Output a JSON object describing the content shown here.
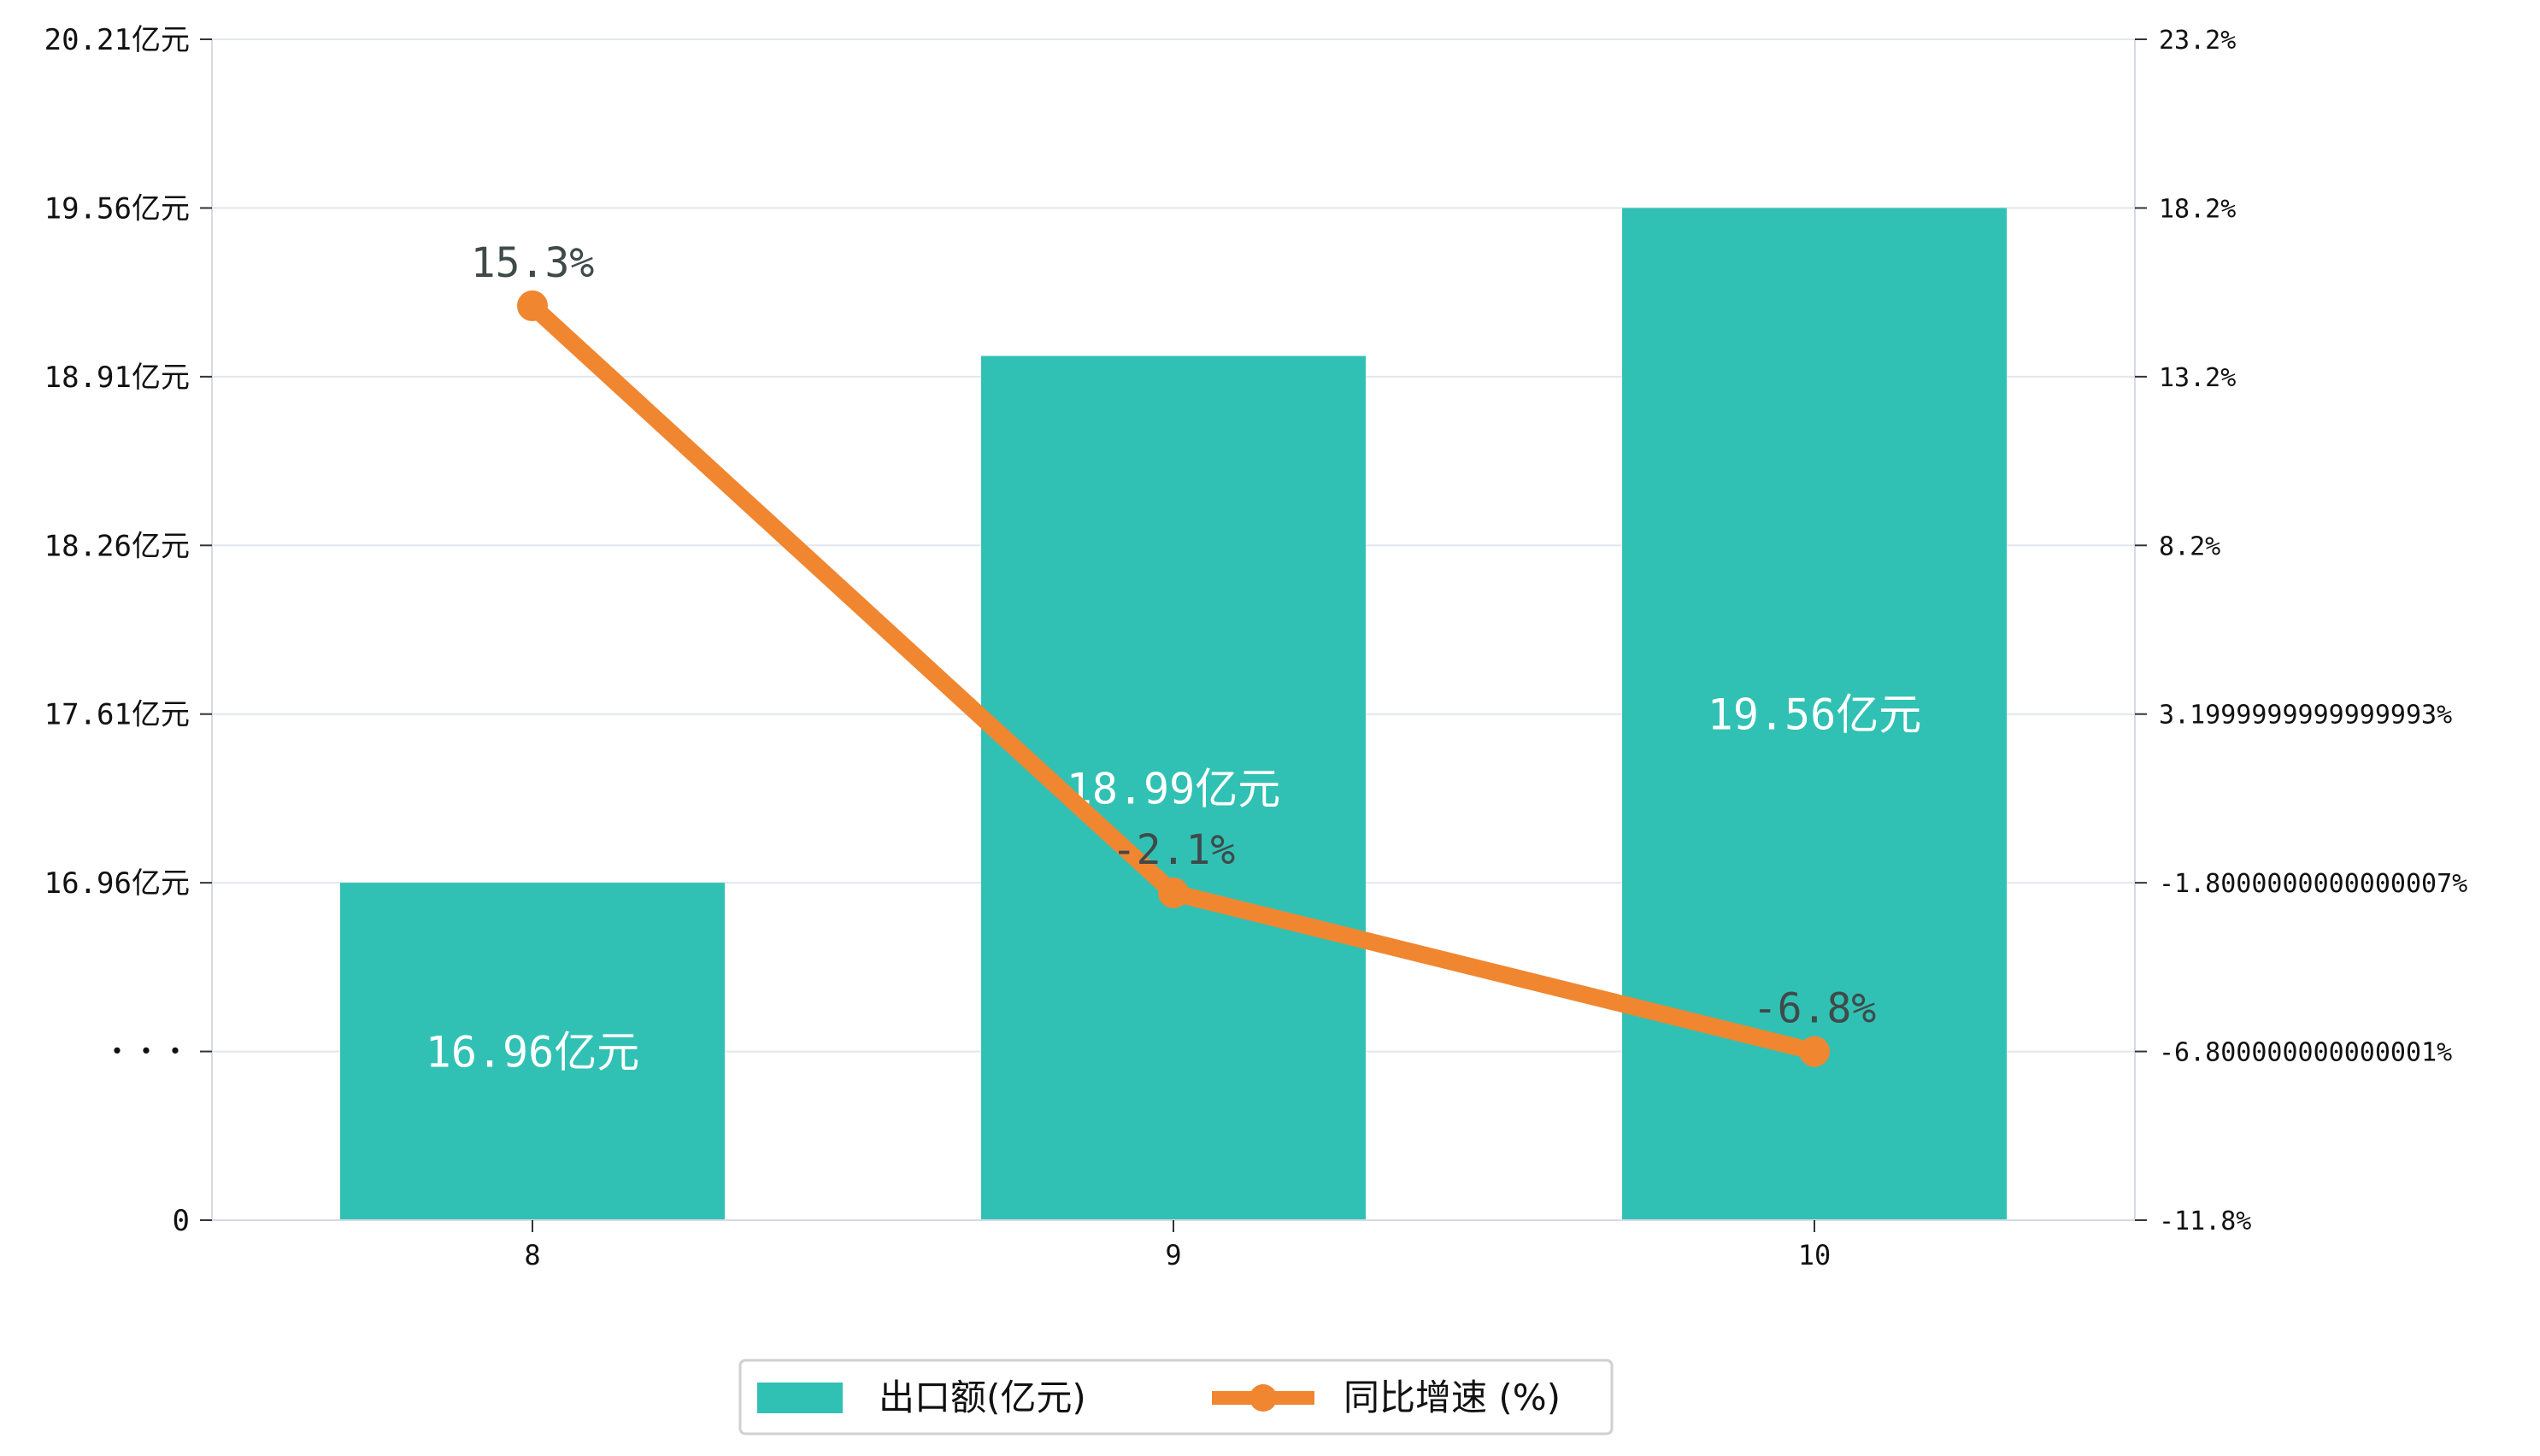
{
  "chart_data": {
    "type": "bar",
    "title": "",
    "xlabel": "",
    "ylabel": "",
    "categories": [
      "8",
      "9",
      "10"
    ],
    "series": [
      {
        "name": "出口额(亿元)",
        "type": "bar",
        "axis": "left",
        "values": [
          16.96,
          18.99,
          19.56
        ],
        "labels": [
          "16.96亿元",
          "18.99亿元",
          "19.56亿元"
        ],
        "color": "#31c1b4"
      },
      {
        "name": "同比增速 (%)",
        "type": "line",
        "axis": "right",
        "values": [
          15.3,
          -2.1,
          -6.8
        ],
        "labels": [
          "15.3%",
          "-2.1%",
          "-6.8%"
        ],
        "color": "#f08630"
      }
    ],
    "left_axis": {
      "ticks": [
        {
          "value": 0,
          "label": "0"
        },
        {
          "value": 1,
          "label": "・・・"
        },
        {
          "value": 2,
          "label": "16.96亿元"
        },
        {
          "value": 3,
          "label": "17.61亿元"
        },
        {
          "value": 4,
          "label": "18.26亿元"
        },
        {
          "value": 5,
          "label": "18.91亿元"
        },
        {
          "value": 6,
          "label": "19.56亿元"
        },
        {
          "value": 7,
          "label": "20.21亿元"
        }
      ],
      "broken_axis": true,
      "break_value": 16.96,
      "break_step": 0.65
    },
    "right_axis": {
      "ylim": [
        -11.8,
        23.2
      ],
      "ticks": [
        {
          "value": 23.2,
          "label": "23.2%"
        },
        {
          "value": 18.2,
          "label": "18.2%"
        },
        {
          "value": 13.2,
          "label": "13.2%"
        },
        {
          "value": 8.2,
          "label": "8.2%"
        },
        {
          "value": 3.2,
          "label": "3.1999999999999993%"
        },
        {
          "value": -1.8,
          "label": "-1.8000000000000007%"
        },
        {
          "value": -6.8,
          "label": "-6.800000000000001%"
        },
        {
          "value": -11.8,
          "label": "-11.8%"
        }
      ]
    },
    "grid": true,
    "legend_position": "bottom-center"
  }
}
